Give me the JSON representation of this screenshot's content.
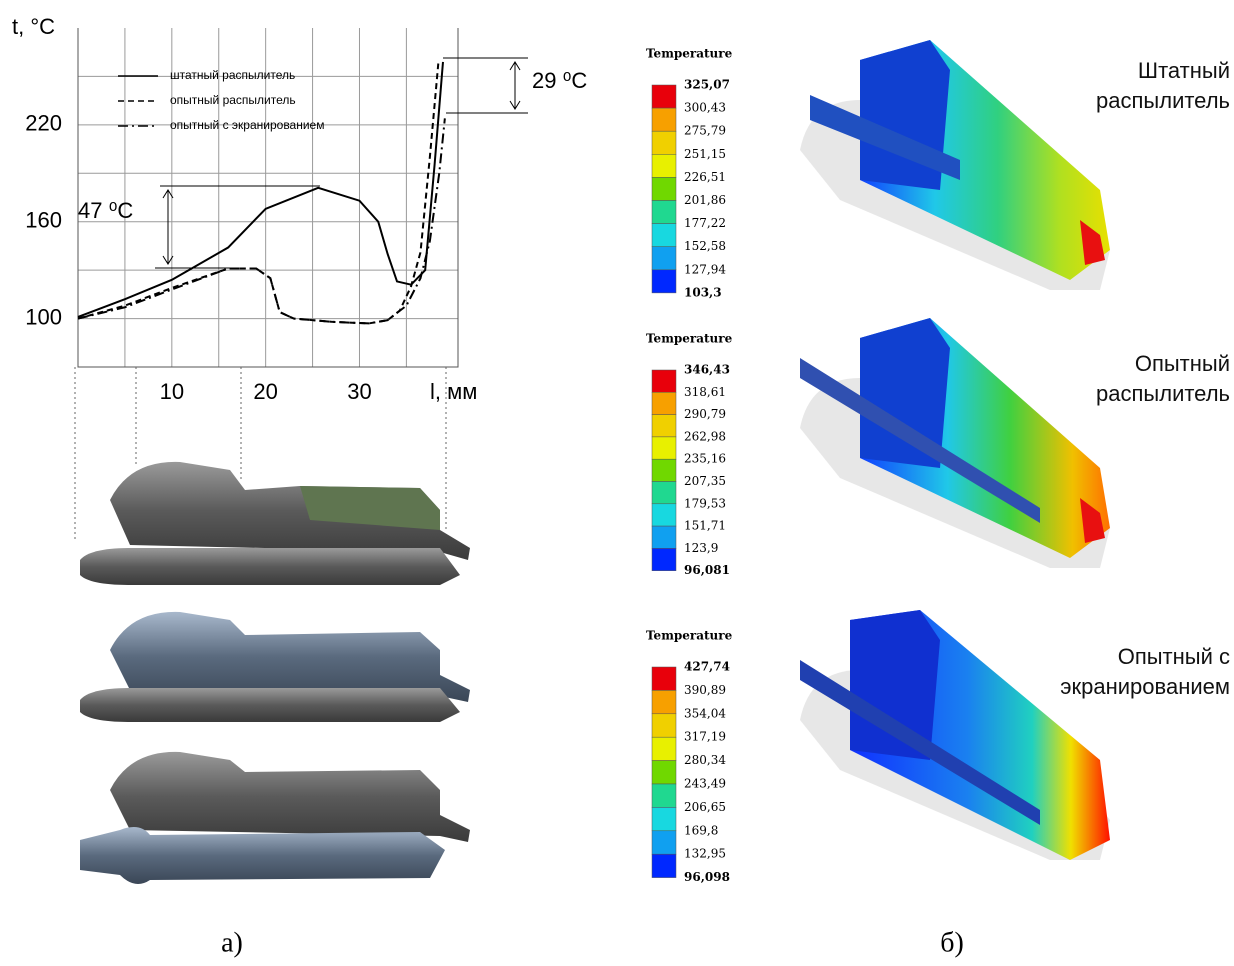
{
  "chart_data": {
    "type": "line",
    "x_label": "l, мм",
    "y_label": "t, °C",
    "xlim": [
      0,
      40.5
    ],
    "ylim": [
      70,
      280
    ],
    "xticks": [
      10,
      20,
      30
    ],
    "yticks": [
      100,
      160,
      220
    ],
    "xgrid": [
      5,
      10,
      15,
      20,
      25,
      30,
      35
    ],
    "ygrid": [
      100,
      130,
      160,
      190,
      220,
      250
    ],
    "grid": true,
    "legend": "upper left",
    "annotations": [
      "47 ⁰C",
      "29 ⁰C"
    ],
    "series": [
      {
        "name": "штатный распылитель",
        "color": "#000000",
        "dash": "solid",
        "x": [
          0,
          5,
          10,
          16,
          20,
          25.6,
          30,
          32,
          33,
          34,
          35.5,
          37,
          38,
          38.9
        ],
        "values": [
          101,
          112,
          124,
          144,
          168,
          181,
          173,
          160,
          140,
          123,
          121,
          130,
          195,
          259
        ]
      },
      {
        "name": "опытный распылитель",
        "color": "#000000",
        "dash": "dashed",
        "x": [
          0,
          5,
          10,
          16,
          19,
          20.5,
          21.5,
          23,
          27,
          31,
          33,
          34.3,
          35.5,
          36.5,
          37.5,
          38.4
        ],
        "values": [
          100,
          108,
          119,
          131,
          131,
          125,
          104,
          100,
          98,
          97,
          99,
          105,
          120,
          141,
          200,
          258
        ]
      },
      {
        "name": "опытный с экранированием",
        "color": "#000000",
        "dash": "dashdot",
        "x": [
          0,
          5,
          10,
          16,
          19,
          20.5,
          21.5,
          23,
          27,
          31,
          33,
          35,
          36.5,
          37.5,
          38.5,
          39.1
        ],
        "values": [
          100,
          107,
          118,
          131,
          131,
          125,
          104,
          100,
          98,
          97,
          99,
          108,
          125,
          148,
          190,
          224
        ]
      }
    ]
  },
  "contour_plots": [
    {
      "legend_title": "Temperature",
      "levels": [
        "325,07",
        "300,43",
        "275,79",
        "251,15",
        "226,51",
        "201,86",
        "177,22",
        "152,58",
        "127,94",
        "103,3"
      ],
      "label": [
        "Штатный",
        "распылитель"
      ]
    },
    {
      "legend_title": "Temperature",
      "levels": [
        "346,43",
        "318,61",
        "290,79",
        "262,98",
        "235,16",
        "207,35",
        "179,53",
        "151,71",
        "123,9",
        "96,081"
      ],
      "label": [
        "Опытный",
        "распылитель"
      ]
    },
    {
      "legend_title": "Temperature",
      "levels": [
        "427,74",
        "390,89",
        "354,04",
        "317,19",
        "280,34",
        "243,49",
        "206,65",
        "169,8",
        "132,95",
        "96,098"
      ],
      "label": [
        "Опытный с",
        "экранированием"
      ]
    }
  ],
  "captions": [
    "а)",
    "б)"
  ]
}
